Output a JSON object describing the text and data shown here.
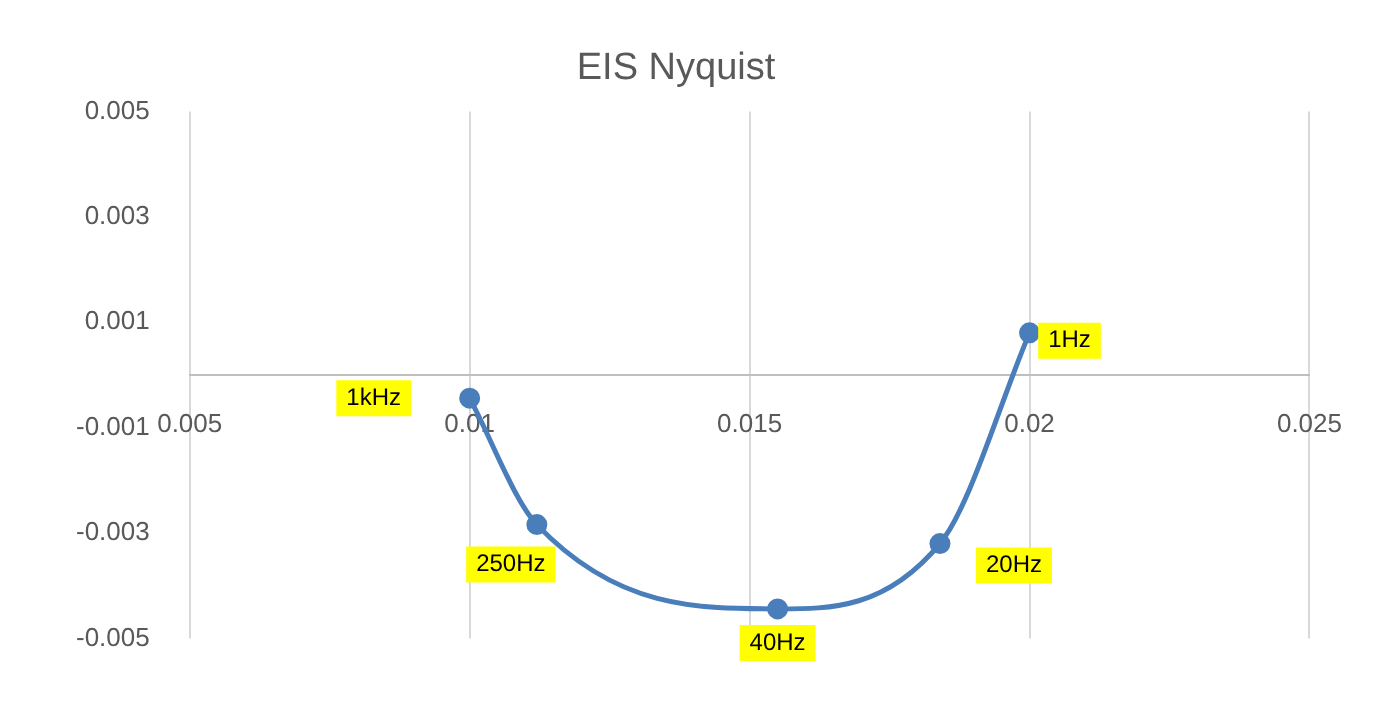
{
  "chart_data": {
    "type": "line",
    "title": "EIS Nyquist",
    "x": [
      0.01,
      0.0112,
      0.0155,
      0.0184,
      0.02
    ],
    "series": [
      {
        "color": "#4a7ebb",
        "values": [
          -0.00044,
          -0.00284,
          -0.00444,
          -0.0032,
          0.0008
        ]
      }
    ],
    "xlim": [
      0.005,
      0.025
    ],
    "xticks": [
      0.005,
      0.01,
      0.015,
      0.02,
      0.025
    ],
    "ylim": [
      -0.005,
      0.005
    ],
    "yticks": [
      -0.005,
      -0.003,
      -0.001,
      0.001,
      0.003,
      0.005
    ],
    "grid": "x",
    "legend": false,
    "marker": "circle",
    "line_style": "solid",
    "annotations": [
      {
        "text": "1kHz",
        "x": 0.01,
        "y": -0.00044
      },
      {
        "text": "250Hz",
        "x": 0.0112,
        "y": -0.00284
      },
      {
        "text": "40Hz",
        "x": 0.0155,
        "y": -0.00444
      },
      {
        "text": "20Hz",
        "x": 0.0184,
        "y": -0.0032
      },
      {
        "text": "1Hz",
        "x": 0.02,
        "y": 0.0008
      }
    ]
  }
}
